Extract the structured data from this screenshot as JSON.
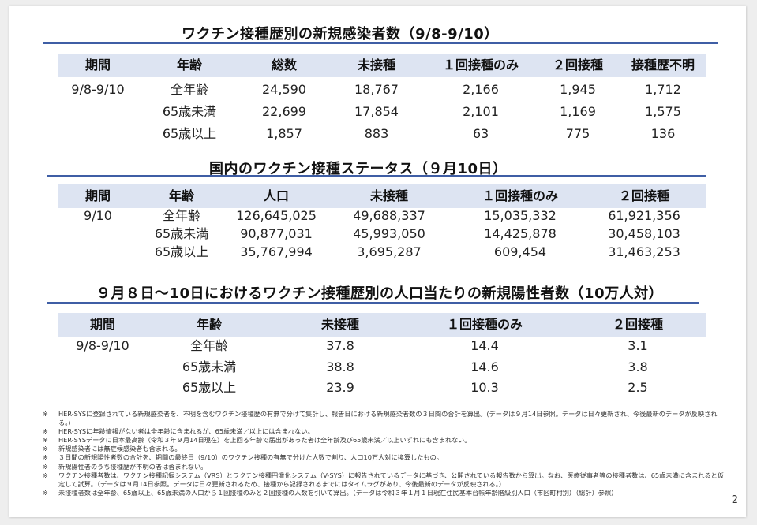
{
  "section1": {
    "title": "ワクチン接種歴別の新規感染者数（9/8-9/10）",
    "headers": [
      "期間",
      "年齢",
      "総数",
      "未接種",
      "１回接種のみ",
      "２回接種",
      "接種歴不明"
    ],
    "rows": [
      [
        "9/8-9/10",
        "全年齢",
        "24,590",
        "18,767",
        "2,166",
        "1,945",
        "1,712"
      ],
      [
        "",
        "65歳未満",
        "22,699",
        "17,854",
        "2,101",
        "1,169",
        "1,575"
      ],
      [
        "",
        "65歳以上",
        "1,857",
        "883",
        "63",
        "775",
        "136"
      ]
    ]
  },
  "section2": {
    "title": "国内のワクチン接種ステータス（９月10日）",
    "headers": [
      "期間",
      "年齢",
      "人口",
      "未接種",
      "１回接種のみ",
      "２回接種"
    ],
    "rows": [
      [
        "9/10",
        "全年齢",
        "126,645,025",
        "49,688,337",
        "15,035,332",
        "61,921,356"
      ],
      [
        "",
        "65歳未満",
        "90,877,031",
        "45,993,050",
        "14,425,878",
        "30,458,103"
      ],
      [
        "",
        "65歳以上",
        "35,767,994",
        "3,695,287",
        "609,454",
        "31,463,253"
      ]
    ]
  },
  "section3": {
    "title": "９月８日～10日におけるワクチン接種歴別の人口当たりの新規陽性者数（10万人対）",
    "headers": [
      "期間",
      "年齢",
      "未接種",
      "１回接種のみ",
      "２回接種"
    ],
    "rows": [
      [
        "9/8-9/10",
        "全年齢",
        "37.8",
        "14.4",
        "3.1"
      ],
      [
        "",
        "65歳未満",
        "38.8",
        "14.6",
        "3.8"
      ],
      [
        "",
        "65歳以上",
        "23.9",
        "10.3",
        "2.5"
      ]
    ]
  },
  "notes": {
    "mark": "※",
    "items": [
      "HER-SYSに登録されている新規感染者を、不明を含むワクチン接種歴の有無で分けて集計し、報告日における新規感染者数の３日間の合計を算出。(データは９月14日参照。データは日々更新され、今後最新のデータが反映される。)",
      "HER-SYSに年齢情報がない者は全年齢に含まれるが、65歳未満／以上には含まれない。",
      "HER-SYSデータに日本最高齢（令和３年９月14日現在）を上回る年齢で届出があった者は全年齢及び65歳未満／以上いずれにも含まれない。",
      "新規感染者には無症候感染者も含まれる。",
      "３日間の新規陽性者数の合計を、期間の最終日（9/10）のワクチン接種の有無で分けた人数で割り、人口10万人対に換算したもの。",
      "新規陽性者のうち接種歴が不明の者は含まれない。",
      "ワクチン接種者数は、ワクチン接種記録システム（VRS）とワクチン接種円滑化システム（V-SYS）に報告されているデータに基づき、公開されている報告数から算出。なお、医療従事者等の接種者数は、65歳未満に含まれると仮定して試算。（データは９月14日参照。データは日々更新されるため、接種から記録されるまでにはタイムラグがあり、今後最新のデータが反映される。）",
      "未接種者数は全年齢、65歳以上、65歳未満の人口から１回接種のみと２回接種の人数を引いて算出。（データは令和３年１月１日現在住民基本台帳年齢階級別人口（市区町村別）（総計）参照）"
    ]
  },
  "page_number": "2"
}
